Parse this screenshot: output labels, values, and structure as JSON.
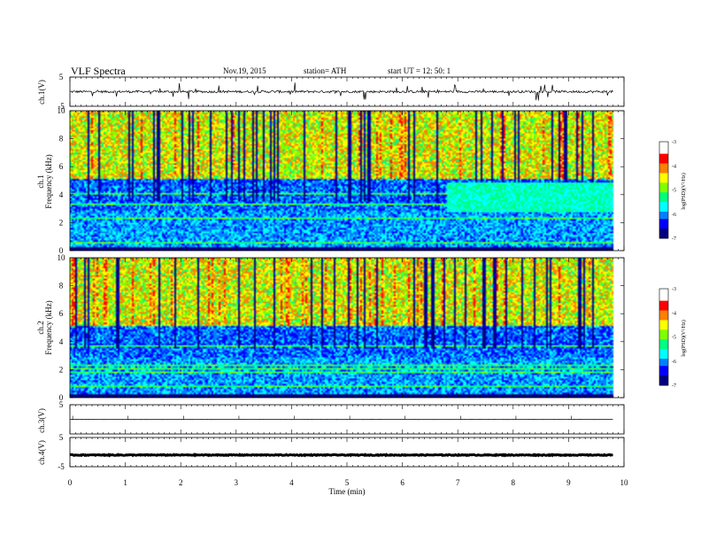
{
  "header": {
    "title": "VLF  Spectra",
    "date": "Nov.19, 2015",
    "station": "station= ATH",
    "start": "start  UT  =    12: 50: 1"
  },
  "panel_labels": {
    "ch1_signal": "ch.1(V)",
    "ch1_spec_top": "ch.1",
    "ch1_spec_bottom": "Frequency  (kHz)",
    "ch2_spec_top": "ch.2",
    "ch2_spec_bottom": "Frequency  (kHz)",
    "ch3_signal": "ch.3(V)",
    "ch4_signal": "ch.4(V)",
    "colorbar_label": "log(PSD)(V²/Hz)"
  },
  "colors": {
    "colormap": [
      "#000080",
      "#0000ff",
      "#0080ff",
      "#00ffff",
      "#00ff80",
      "#80ff00",
      "#ffff00",
      "#ff8000",
      "#ff0000",
      "#ffffff"
    ],
    "line": "#000000"
  },
  "chart_data": [
    {
      "type": "line",
      "name": "ch.1 waveform",
      "ylabel": "ch.1(V)",
      "ylim": [
        -5,
        5
      ],
      "yticks": [
        "5",
        "-5"
      ],
      "xlim": [
        0,
        10
      ],
      "baseline": 0,
      "noise_amp": 0.4,
      "burst_amp": 3
    },
    {
      "type": "heatmap",
      "name": "ch.1 spectrogram",
      "ylabel": "Frequency  (kHz)",
      "ylim": [
        0,
        10
      ],
      "yticks": [
        "0",
        "2",
        "4",
        "6",
        "8",
        "10"
      ],
      "xlim": [
        0,
        10
      ],
      "zlim": [
        -7,
        -3
      ],
      "colorbar_ticks": [
        "-3",
        "-4",
        "-5",
        "-6",
        "-7"
      ],
      "data_end_min": 9.8
    },
    {
      "type": "heatmap",
      "name": "ch.2 spectrogram",
      "ylabel": "Frequency  (kHz)",
      "ylim": [
        0,
        10
      ],
      "yticks": [
        "0",
        "2",
        "4",
        "6",
        "8",
        "10"
      ],
      "xlim": [
        0,
        10
      ],
      "zlim": [
        -7,
        -3
      ],
      "colorbar_ticks": [
        "-3",
        "-4",
        "-5",
        "-6",
        "-7"
      ],
      "data_end_min": 9.8
    },
    {
      "type": "line",
      "name": "ch.3 waveform",
      "ylabel": "ch.3(V)",
      "ylim": [
        -5,
        5
      ],
      "yticks": [
        "5"
      ],
      "xlim": [
        0,
        10
      ],
      "baseline": 0,
      "noise_amp": 0.02,
      "burst_amp": 0
    },
    {
      "type": "line",
      "name": "ch.4 waveform",
      "ylabel": "ch.4(V)",
      "ylim": [
        -5,
        5
      ],
      "yticks": [
        "5",
        "-5"
      ],
      "xlim": [
        0,
        10
      ],
      "baseline": -1,
      "noise_amp": 0.15,
      "burst_amp": 0
    }
  ],
  "x_axis": {
    "label": "Time  (min)",
    "ticks": [
      "0",
      "1",
      "2",
      "3",
      "4",
      "5",
      "6",
      "7",
      "8",
      "9",
      "10"
    ]
  }
}
